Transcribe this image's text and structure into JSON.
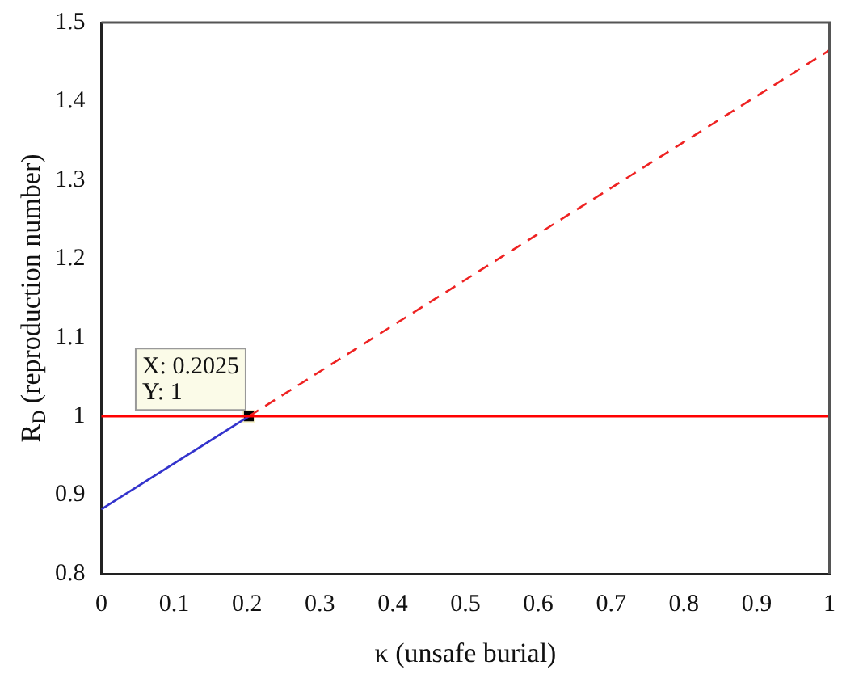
{
  "chart_data": {
    "type": "line",
    "xlabel": "κ (unsafe burial)",
    "ylabel": "R$_{D}$ (reproduction number)",
    "series": [
      {
        "color": "#ff0000",
        "x": [
          0,
          1
        ],
        "values": [
          1,
          1
        ],
        "line_style": "solid"
      },
      {
        "color": "#3333cc",
        "x": [
          0,
          0.2025
        ],
        "values": [
          0.882,
          1
        ],
        "line_style": "solid"
      },
      {
        "color": "#ee2222",
        "x": [
          0.2025,
          1
        ],
        "values": [
          1,
          1.465
        ],
        "line_style": "dashed"
      },
      {
        "type": "scatter",
        "color": "#000000",
        "x": [
          0.2025
        ],
        "values": [
          1
        ],
        "marker": "square"
      }
    ],
    "xlim": [
      0,
      1
    ],
    "xticks": [
      0,
      0.1,
      0.2,
      0.3,
      0.4,
      0.5,
      0.6,
      0.7,
      0.8,
      0.9,
      1
    ],
    "ylim": [
      0.8,
      1.5
    ],
    "yticks": [
      0.8,
      0.9,
      1,
      1.1,
      1.2,
      1.3,
      1.4,
      1.5
    ],
    "grid": false,
    "legend": false,
    "marker": "none",
    "annotations": [
      {
        "text": "X: 0.2025\nY: 1",
        "x": 0.2025,
        "y": 1
      }
    ]
  }
}
